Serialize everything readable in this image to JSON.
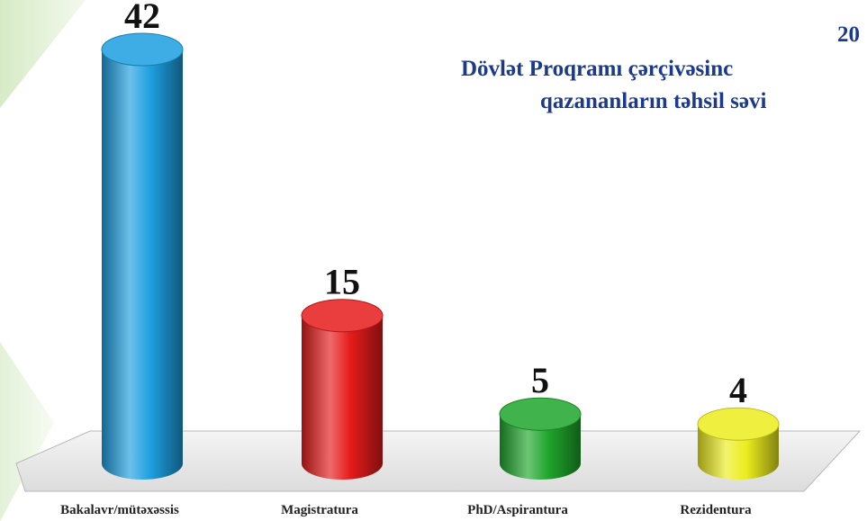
{
  "chart_data": {
    "type": "bar3d",
    "title": [
      "20",
      "Dövlət Proqramı çərçivəsinc",
      "qazananların təhsil səvi"
    ],
    "categories": [
      "Bakalavr/mütəxəssis",
      "Magistratura",
      "PhD/Aspirantura",
      "Rezidentura"
    ],
    "values": [
      42,
      15,
      5,
      4
    ],
    "colors": [
      "#1d9fe0",
      "#e61b1b",
      "#1fa62c",
      "#ecec1e"
    ]
  }
}
